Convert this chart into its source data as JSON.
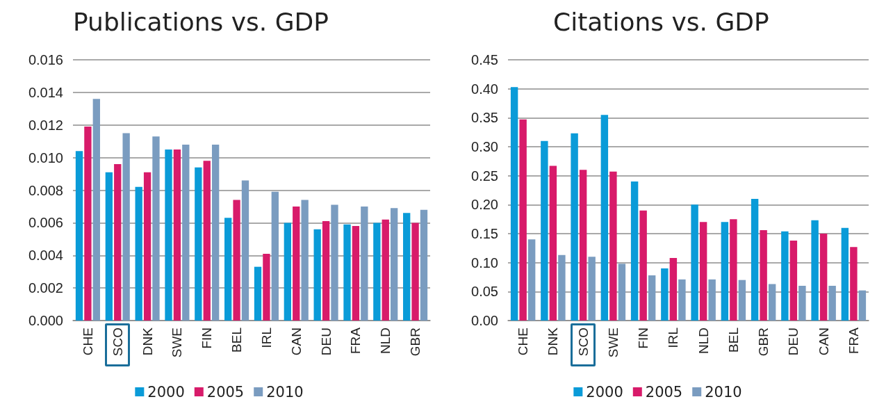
{
  "chart_data": [
    {
      "type": "bar",
      "title": "Publications vs. GDP",
      "categories": [
        "CHE",
        "SCO",
        "DNK",
        "SWE",
        "FIN",
        "BEL",
        "IRL",
        "CAN",
        "DEU",
        "FRA",
        "NLD",
        "GBR"
      ],
      "series": [
        {
          "name": "2000",
          "color": "#0a9bd8",
          "values": [
            0.0104,
            0.0091,
            0.0082,
            0.0105,
            0.0094,
            0.0063,
            0.0033,
            0.006,
            0.0056,
            0.0059,
            0.006,
            0.0066
          ]
        },
        {
          "name": "2005",
          "color": "#d81b6a",
          "values": [
            0.0119,
            0.0096,
            0.0091,
            0.0105,
            0.0098,
            0.0074,
            0.0041,
            0.007,
            0.0061,
            0.0058,
            0.0062,
            0.006
          ]
        },
        {
          "name": "2010",
          "color": "#7a9cc0",
          "values": [
            0.0136,
            0.0115,
            0.0113,
            0.0108,
            0.0108,
            0.0086,
            0.0079,
            0.0074,
            0.0071,
            0.007,
            0.0069,
            0.0068
          ]
        }
      ],
      "ylim": [
        0,
        0.016
      ],
      "yticks": [
        {
          "value": 0,
          "label": "0.000"
        },
        {
          "value": 0.002,
          "label": "0.002"
        },
        {
          "value": 0.004,
          "label": "0.004"
        },
        {
          "value": 0.006,
          "label": "0.006"
        },
        {
          "value": 0.008,
          "label": "0.008"
        },
        {
          "value": 0.01,
          "label": "0.010"
        },
        {
          "value": 0.012,
          "label": "0.012"
        },
        {
          "value": 0.014,
          "label": "0.014"
        },
        {
          "value": 0.016,
          "label": "0.016"
        }
      ],
      "grid": "y",
      "legend": "bottom"
    },
    {
      "type": "bar",
      "title": "Citations vs. GDP",
      "categories": [
        "CHE",
        "DNK",
        "SCO",
        "SWE",
        "FIN",
        "IRL",
        "NLD",
        "BEL",
        "GBR",
        "DEU",
        "CAN",
        "FRA"
      ],
      "series": [
        {
          "name": "2000",
          "color": "#0a9bd8",
          "values": [
            0.403,
            0.31,
            0.323,
            0.355,
            0.24,
            0.09,
            0.2,
            0.17,
            0.21,
            0.154,
            0.173,
            0.16
          ]
        },
        {
          "name": "2005",
          "color": "#d81b6a",
          "values": [
            0.347,
            0.267,
            0.26,
            0.257,
            0.19,
            0.108,
            0.17,
            0.175,
            0.156,
            0.138,
            0.15,
            0.127
          ]
        },
        {
          "name": "2010",
          "color": "#7a9cc0",
          "values": [
            0.14,
            0.113,
            0.11,
            0.098,
            0.078,
            0.071,
            0.071,
            0.07,
            0.063,
            0.06,
            0.06,
            0.052
          ]
        }
      ],
      "ylim": [
        0,
        0.45
      ],
      "yticks": [
        {
          "value": 0,
          "label": "0.00"
        },
        {
          "value": 0.05,
          "label": "0.05"
        },
        {
          "value": 0.1,
          "label": "0.10"
        },
        {
          "value": 0.15,
          "label": "0.15"
        },
        {
          "value": 0.2,
          "label": "0.20"
        },
        {
          "value": 0.25,
          "label": "0.25"
        },
        {
          "value": 0.3,
          "label": "0.30"
        },
        {
          "value": 0.35,
          "label": "0.35"
        },
        {
          "value": 0.4,
          "label": "0.40"
        },
        {
          "value": 0.45,
          "label": "0.45"
        }
      ],
      "grid": "y",
      "legend": "bottom"
    }
  ]
}
